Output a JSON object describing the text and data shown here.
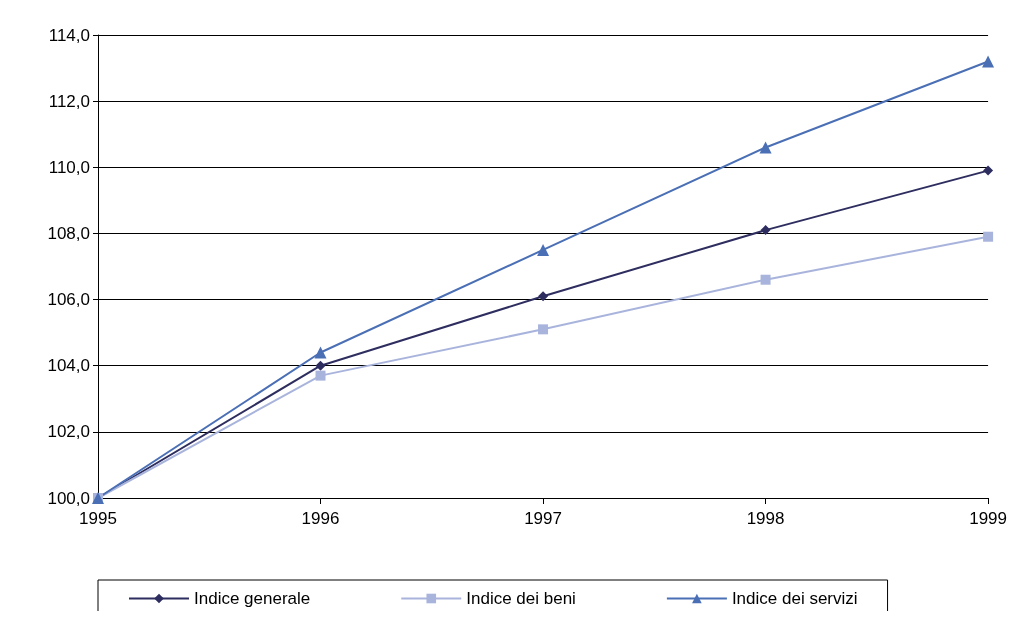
{
  "chart_data": {
    "type": "line",
    "x": [
      1995,
      1996,
      1997,
      1998,
      1999
    ],
    "series": [
      {
        "name": "Indice generale",
        "color": "#2e2d5f",
        "marker": "diamond",
        "values": [
          100.0,
          104.0,
          106.1,
          108.1,
          109.9
        ]
      },
      {
        "name": "Indice dei beni",
        "color": "#a9b4dc",
        "marker": "square",
        "values": [
          100.0,
          103.7,
          105.1,
          106.6,
          107.9
        ]
      },
      {
        "name": "Indice dei servizi",
        "color": "#4a6fb5",
        "marker": "triangle",
        "values": [
          100.0,
          104.4,
          107.5,
          110.6,
          113.2
        ]
      }
    ],
    "xlim": [
      1995,
      1999
    ],
    "xticks": [
      1995,
      1996,
      1997,
      1998,
      1999
    ],
    "ylim": [
      100,
      114
    ],
    "yticks": [
      {
        "value": 100,
        "label": "100,0"
      },
      {
        "value": 102,
        "label": "102,0"
      },
      {
        "value": 104,
        "label": "104,0"
      },
      {
        "value": 106,
        "label": "106,0"
      },
      {
        "value": 108,
        "label": "108,0"
      },
      {
        "value": 110,
        "label": "110,0"
      },
      {
        "value": 112,
        "label": "112,0"
      },
      {
        "value": 114,
        "label": "114,0"
      }
    ],
    "grid": "y",
    "legend": "bottom",
    "line_style": "solid"
  }
}
